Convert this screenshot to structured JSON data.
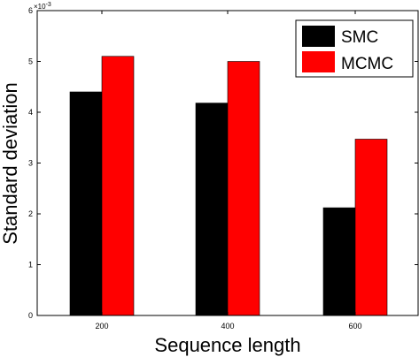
{
  "chart_data": {
    "type": "bar",
    "title": "",
    "xlabel": "Sequence length",
    "ylabel": "Standard deviation",
    "y_scale_label": "×10",
    "y_scale_exponent": "-3",
    "categories": [
      "200",
      "400",
      "600"
    ],
    "series": [
      {
        "name": "SMC",
        "values": [
          4.4,
          4.18,
          2.12
        ],
        "color": "#000000"
      },
      {
        "name": "MCMC",
        "values": [
          5.1,
          5.0,
          3.47
        ],
        "color": "#ff0000"
      }
    ],
    "ylim": [
      0,
      6
    ],
    "yticks": [
      0,
      1,
      2,
      3,
      4,
      5,
      6
    ],
    "grid": false,
    "legend_position": "top-right"
  }
}
